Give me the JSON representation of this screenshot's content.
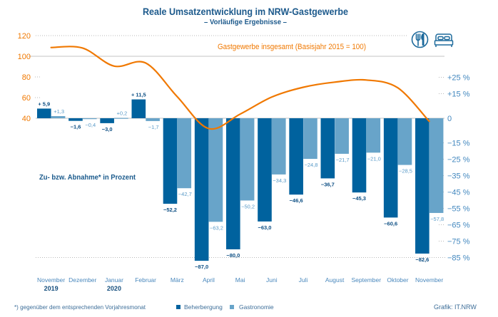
{
  "chart_data": {
    "type": "bar",
    "title": "Reale Umsatzentwicklung im NRW-Gastgewerbe",
    "subtitle": "– Vorläufige Ergebnisse –",
    "categories": [
      "November",
      "Dezember",
      "Januar",
      "Februar",
      "März",
      "April",
      "Mai",
      "Juni",
      "Juli",
      "August",
      "September",
      "Oktober",
      "November"
    ],
    "category_years": [
      "2019",
      "",
      "2020",
      "",
      "",
      "",
      "",
      "",
      "",
      "",
      "",
      "",
      ""
    ],
    "series": [
      {
        "name": "Beherbergung",
        "type": "bar",
        "axis": "right",
        "color": "#00629e",
        "values": [
          5.9,
          -1.6,
          -3.0,
          11.5,
          -52.2,
          -87.0,
          -80.0,
          -63.0,
          -46.6,
          -36.7,
          -45.3,
          -60.6,
          -82.6
        ],
        "labels": [
          "+ 5,9",
          "−1,6",
          "−3,0",
          "+ 11,5",
          "−52,2",
          "−87,0",
          "−80,0",
          "−63,0",
          "−46,6",
          "−36,7",
          "−45,3",
          "−60,6",
          "−82,6"
        ]
      },
      {
        "name": "Gastronomie",
        "type": "bar",
        "axis": "right",
        "color": "#68a4c9",
        "values": [
          1.3,
          -0.4,
          0.2,
          -1.7,
          -42.7,
          -63.2,
          -50.2,
          -34.3,
          -24.8,
          -21.7,
          -21.0,
          -28.5,
          -57.8
        ],
        "labels": [
          "+1,3",
          "−0,4",
          "+0,2",
          "−1,7",
          "−42,7",
          "−63,2",
          "−50,2",
          "−34,3",
          "−24,8",
          "−21,7",
          "−21,0",
          "−28,5",
          "−57,8"
        ]
      },
      {
        "name": "Gastgewerbe insgesamt (Basisjahr 2015 = 100)",
        "type": "line",
        "axis": "left",
        "color": "#f07800",
        "values": [
          108.5,
          108,
          90.5,
          93.5,
          61,
          30,
          44,
          60.5,
          70,
          75,
          77,
          69.5,
          37
        ]
      }
    ],
    "left_axis": {
      "label": "Gastgewerbe insgesamt (Basisjahr 2015 = 100)",
      "ticks": [
        120,
        100,
        80,
        60,
        40
      ],
      "ylim": [
        40,
        120
      ],
      "color": "#f07800"
    },
    "right_axis": {
      "label": "Zu- bzw. Abnahme* in Prozent",
      "ticks": [
        25,
        15,
        0,
        -15,
        -25,
        -35,
        -45,
        -55,
        -65,
        -75,
        -85
      ],
      "tick_labels": [
        "+25 %",
        "+15 %",
        "0",
        "−15 %",
        "−25 %",
        "−35 %",
        "−45 %",
        "−55 %",
        "−65 %",
        "−75 %",
        "−85 %"
      ],
      "ylim": [
        -85,
        25
      ],
      "color": "#4388bf"
    },
    "legend": {
      "position": "bottom",
      "items": [
        {
          "label": "Beherbergung",
          "color": "#00629e"
        },
        {
          "label": "Gastronomie",
          "color": "#68a4c9"
        }
      ]
    },
    "annotation": "Zu- bzw. Abnahme* in Prozent",
    "footnote": "*)  gegenüber dem entsprechenden Vorjahresmonat",
    "source": "Grafik: IT.NRW",
    "icons": [
      "cutlery-icon",
      "bed-icon"
    ],
    "grid": false
  }
}
